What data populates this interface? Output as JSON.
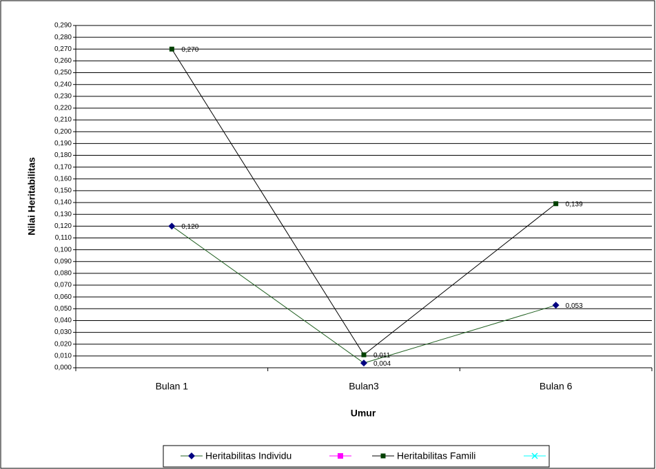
{
  "chart_data": {
    "type": "line",
    "y_label": "Nilai Heritabilitas",
    "x_label": "Umur",
    "categories": [
      "Bulan 1",
      "Bulan3",
      "Bulan 6"
    ],
    "series": [
      {
        "name": "Heritabilitas Individu",
        "color": "#1f5f1f",
        "marker_color": "#000080",
        "marker": "diamond",
        "values": [
          0.12,
          0.004,
          0.053
        ],
        "value_labels": [
          "0,120",
          "0,004",
          "0,053"
        ]
      },
      {
        "name": "Heritabilitas Famili",
        "color": "#000000",
        "marker_color": "#004000",
        "marker": "square",
        "values": [
          0.27,
          0.011,
          0.139
        ],
        "value_labels": [
          "0,270",
          "0,011",
          "0,139"
        ]
      }
    ],
    "ylim": [
      0,
      0.29
    ],
    "yticks": [
      {
        "value": 0,
        "label": "0,000"
      },
      {
        "value": 0.01,
        "label": "0,010"
      },
      {
        "value": 0.02,
        "label": "0,020"
      },
      {
        "value": 0.03,
        "label": "0,030"
      },
      {
        "value": 0.04,
        "label": "0,040"
      },
      {
        "value": 0.05,
        "label": "0,050"
      },
      {
        "value": 0.06,
        "label": "0,060"
      },
      {
        "value": 0.07,
        "label": "0,070"
      },
      {
        "value": 0.08,
        "label": "0,080"
      },
      {
        "value": 0.09,
        "label": "0,090"
      },
      {
        "value": 0.1,
        "label": "0,100"
      },
      {
        "value": 0.11,
        "label": "0,110"
      },
      {
        "value": 0.12,
        "label": "0,120"
      },
      {
        "value": 0.13,
        "label": "0,130"
      },
      {
        "value": 0.14,
        "label": "0,140"
      },
      {
        "value": 0.15,
        "label": "0,150"
      },
      {
        "value": 0.16,
        "label": "0,160"
      },
      {
        "value": 0.17,
        "label": "0,170"
      },
      {
        "value": 0.18,
        "label": "0,180"
      },
      {
        "value": 0.19,
        "label": "0,190"
      },
      {
        "value": 0.2,
        "label": "0,200"
      },
      {
        "value": 0.21,
        "label": "0,210"
      },
      {
        "value": 0.22,
        "label": "0,220"
      },
      {
        "value": 0.23,
        "label": "0,230"
      },
      {
        "value": 0.24,
        "label": "0,240"
      },
      {
        "value": 0.25,
        "label": "0,250"
      },
      {
        "value": 0.26,
        "label": "0,260"
      },
      {
        "value": 0.27,
        "label": "0,270"
      },
      {
        "value": 0.28,
        "label": "0,280"
      },
      {
        "value": 0.29,
        "label": "0,290"
      }
    ],
    "grid": true
  }
}
